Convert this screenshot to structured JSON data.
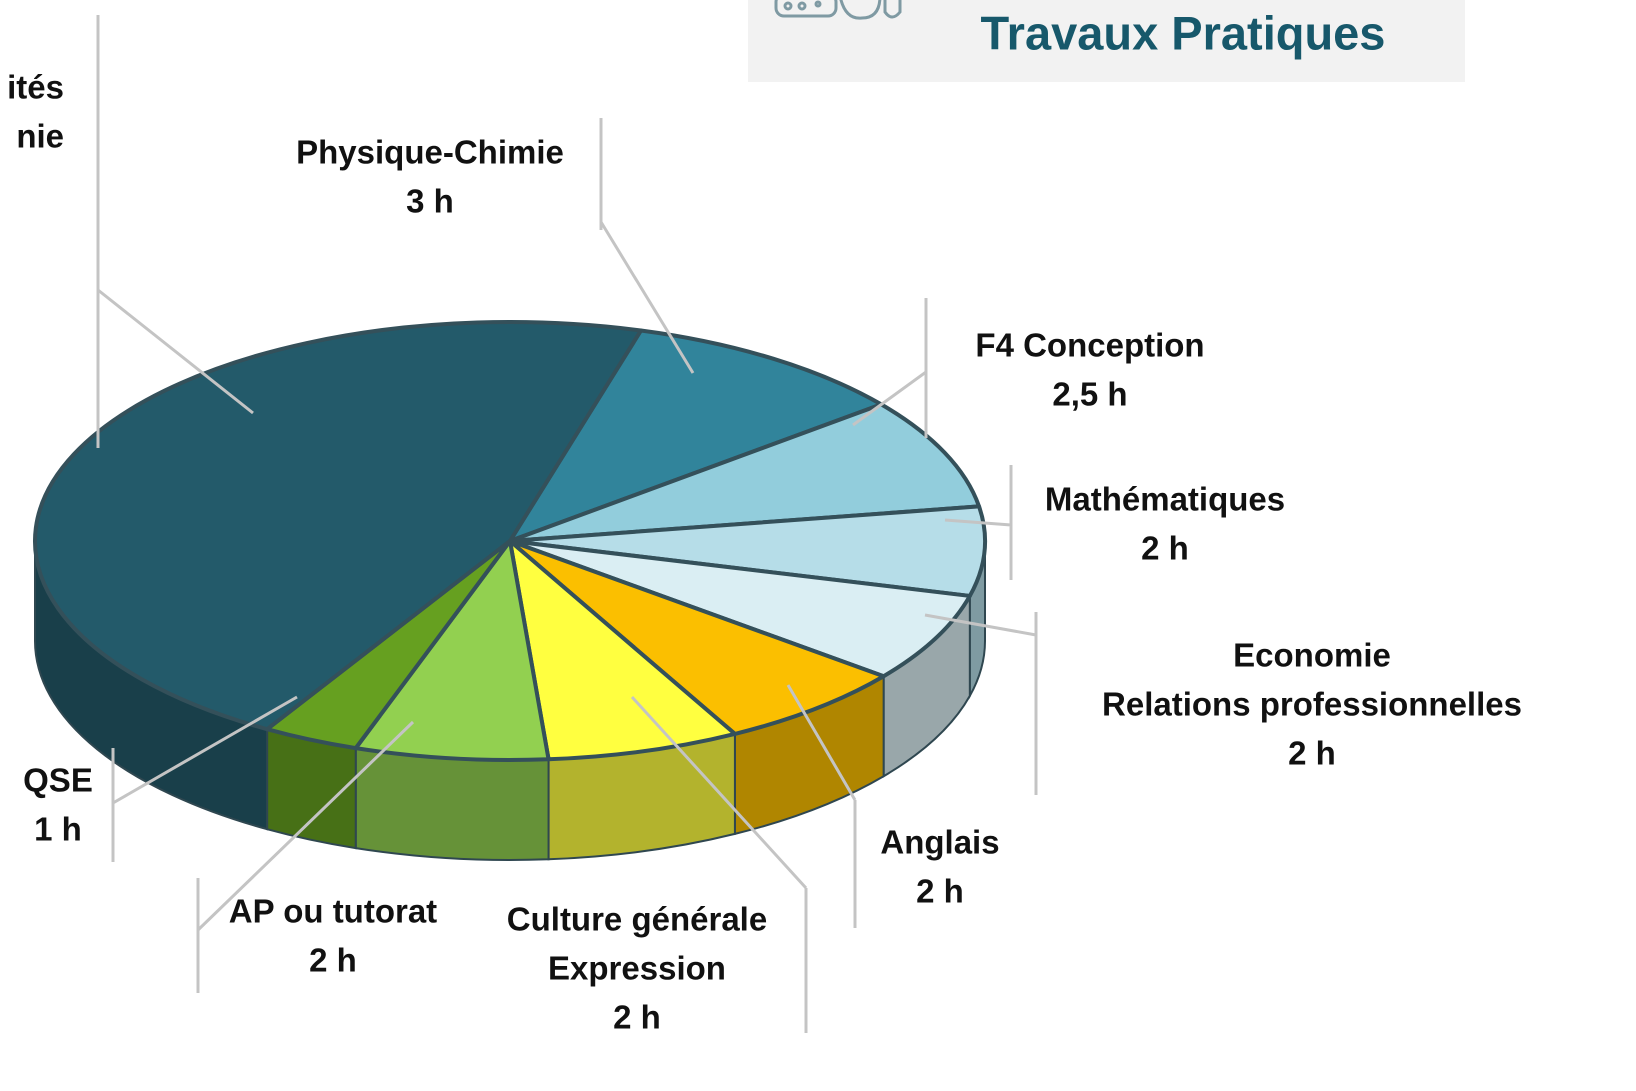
{
  "chart_data": {
    "type": "pie",
    "title": "Travaux Pratiques",
    "categories": [
      [
        "ités",
        "nie"
      ],
      [
        "Physique-Chimie"
      ],
      [
        "F4 Conception"
      ],
      [
        "Mathématiques"
      ],
      [
        "Economie",
        "Relations professionnelles"
      ],
      [
        "Anglais"
      ],
      [
        "Culture générale",
        "Expression"
      ],
      [
        "AP ou tutorat"
      ],
      [
        "QSE"
      ]
    ],
    "values": [
      14,
      3,
      2.5,
      2,
      2,
      2,
      2,
      2,
      1
    ],
    "value_labels": [
      null,
      "3 h",
      "2,5 h",
      "2 h",
      "2 h",
      "2 h",
      "2 h",
      "2 h",
      "1 h"
    ],
    "colors": [
      "#235a6a",
      "#31849b",
      "#92cddc",
      "#b6dde8",
      "#daeef3",
      "#fbbf00",
      "#ffff40",
      "#92d050",
      "#66a020"
    ]
  }
}
